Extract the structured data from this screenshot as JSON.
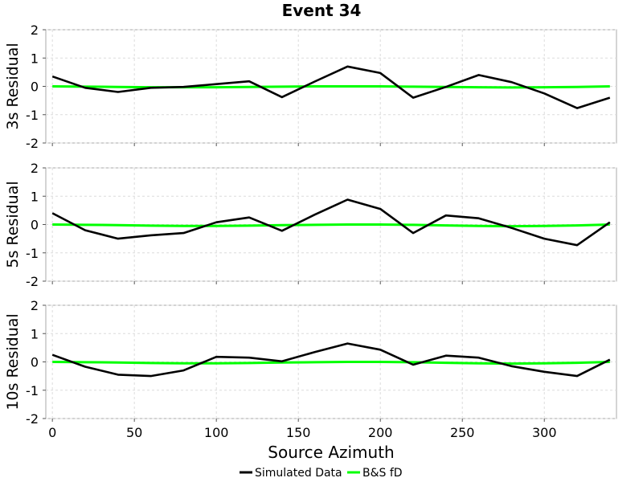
{
  "chart_data": {
    "type": "line",
    "title": "Event 34",
    "xlabel": "Source Azimuth",
    "xlim": [
      -4,
      344
    ],
    "xticks": [
      0,
      50,
      100,
      150,
      200,
      250,
      300
    ],
    "yticks": [
      -2,
      -1,
      0,
      1,
      2
    ],
    "ylim": [
      -2,
      2
    ],
    "grid": true,
    "legend_position": "bottom-center",
    "x": [
      0,
      20,
      40,
      60,
      80,
      100,
      120,
      140,
      160,
      180,
      200,
      220,
      240,
      260,
      280,
      300,
      320,
      340
    ],
    "panels": [
      {
        "ylabel": "3s Residual",
        "series": [
          {
            "name": "Simulated Data",
            "color": "#000000",
            "values": [
              0.35,
              -0.05,
              -0.2,
              -0.05,
              -0.02,
              0.08,
              0.18,
              -0.38,
              0.17,
              0.7,
              0.47,
              -0.4,
              -0.02,
              0.4,
              0.15,
              -0.25,
              -0.77,
              -0.4
            ]
          },
          {
            "name": "B&S fD",
            "color": "#00ff00",
            "values": [
              0.0,
              -0.01,
              -0.02,
              -0.03,
              -0.03,
              -0.03,
              -0.02,
              -0.01,
              0.0,
              0.0,
              0.0,
              -0.01,
              -0.02,
              -0.03,
              -0.04,
              -0.03,
              -0.02,
              0.0
            ]
          }
        ]
      },
      {
        "ylabel": "5s Residual",
        "series": [
          {
            "name": "Simulated Data",
            "color": "#000000",
            "values": [
              0.4,
              -0.2,
              -0.5,
              -0.38,
              -0.3,
              0.08,
              0.25,
              -0.22,
              0.35,
              0.88,
              0.55,
              -0.3,
              0.32,
              0.22,
              -0.12,
              -0.5,
              -0.73,
              0.08
            ]
          },
          {
            "name": "B&S fD",
            "color": "#00ff00",
            "values": [
              0.0,
              -0.01,
              -0.02,
              -0.04,
              -0.05,
              -0.05,
              -0.04,
              -0.02,
              -0.01,
              0.0,
              0.0,
              -0.01,
              -0.03,
              -0.05,
              -0.06,
              -0.05,
              -0.03,
              0.0
            ]
          }
        ]
      },
      {
        "ylabel": "10s Residual",
        "series": [
          {
            "name": "Simulated Data",
            "color": "#000000",
            "values": [
              0.25,
              -0.17,
              -0.45,
              -0.5,
              -0.3,
              0.18,
              0.15,
              0.02,
              0.35,
              0.65,
              0.43,
              -0.1,
              0.22,
              0.15,
              -0.15,
              -0.35,
              -0.5,
              0.08
            ]
          },
          {
            "name": "B&S fD",
            "color": "#00ff00",
            "values": [
              0.0,
              -0.01,
              -0.02,
              -0.04,
              -0.05,
              -0.05,
              -0.04,
              -0.02,
              -0.01,
              0.0,
              0.0,
              -0.01,
              -0.03,
              -0.05,
              -0.06,
              -0.05,
              -0.03,
              0.0
            ]
          }
        ]
      }
    ],
    "legend": [
      {
        "name": "Simulated Data",
        "color": "#000000"
      },
      {
        "name": "B&S fD",
        "color": "#00ff00"
      }
    ]
  }
}
